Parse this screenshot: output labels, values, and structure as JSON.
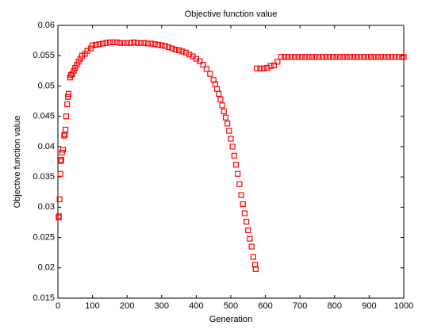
{
  "chart_data": {
    "type": "scatter",
    "title": "Objective function value",
    "xlabel": "Generation",
    "ylabel": "Objective function value",
    "color": "#ff0000",
    "marker": "square",
    "x": [
      2,
      3,
      5,
      7,
      8,
      10,
      12,
      15,
      18,
      20,
      22,
      24,
      27,
      29,
      31,
      35,
      38,
      42,
      46,
      50,
      55,
      60,
      65,
      70,
      78,
      85,
      95,
      100,
      110,
      120,
      130,
      140,
      150,
      160,
      170,
      180,
      190,
      200,
      210,
      220,
      230,
      240,
      250,
      260,
      270,
      280,
      290,
      300,
      310,
      320,
      330,
      340,
      350,
      360,
      370,
      380,
      390,
      400,
      410,
      420,
      430,
      440,
      450,
      455,
      460,
      465,
      470,
      475,
      480,
      485,
      490,
      495,
      500,
      505,
      510,
      515,
      520,
      525,
      530,
      535,
      540,
      545,
      550,
      555,
      560,
      565,
      570,
      572,
      575,
      585,
      595,
      605,
      615,
      625,
      635,
      645,
      655,
      665,
      675,
      685,
      695,
      705,
      715,
      725,
      735,
      745,
      755,
      765,
      775,
      785,
      795,
      805,
      815,
      825,
      835,
      845,
      855,
      865,
      875,
      885,
      895,
      905,
      915,
      925,
      935,
      945,
      955,
      965,
      975,
      985,
      995,
      1000
    ],
    "values": [
      0.0283,
      0.0285,
      0.0313,
      0.0355,
      0.0376,
      0.0378,
      0.039,
      0.0395,
      0.0418,
      0.042,
      0.0428,
      0.045,
      0.047,
      0.0482,
      0.0487,
      0.0514,
      0.0518,
      0.052,
      0.0525,
      0.053,
      0.0535,
      0.054,
      0.0545,
      0.055,
      0.0553,
      0.0558,
      0.0562,
      0.0567,
      0.0568,
      0.0569,
      0.057,
      0.0571,
      0.0572,
      0.0572,
      0.0572,
      0.0571,
      0.0571,
      0.0571,
      0.0571,
      0.0572,
      0.0571,
      0.0571,
      0.0571,
      0.057,
      0.057,
      0.0569,
      0.0568,
      0.0567,
      0.0566,
      0.0564,
      0.0562,
      0.056,
      0.0559,
      0.0557,
      0.0555,
      0.0552,
      0.0549,
      0.0545,
      0.0541,
      0.0535,
      0.0528,
      0.052,
      0.051,
      0.0503,
      0.0495,
      0.0487,
      0.0478,
      0.0468,
      0.0458,
      0.0448,
      0.0438,
      0.0426,
      0.0413,
      0.04,
      0.0385,
      0.037,
      0.0355,
      0.0338,
      0.032,
      0.0305,
      0.029,
      0.0276,
      0.0262,
      0.0248,
      0.0235,
      0.0218,
      0.0205,
      0.0198,
      0.0529,
      0.0529,
      0.0529,
      0.053,
      0.0533,
      0.0534,
      0.054,
      0.0548,
      0.0548,
      0.0548,
      0.0548,
      0.0548,
      0.0548,
      0.0548,
      0.0548,
      0.0548,
      0.0548,
      0.0548,
      0.0548,
      0.0548,
      0.0548,
      0.0548,
      0.0548,
      0.0548,
      0.0548,
      0.0548,
      0.0548,
      0.0548,
      0.0548,
      0.0548,
      0.0548,
      0.0548,
      0.0548,
      0.0548,
      0.0548,
      0.0548,
      0.0548,
      0.0548,
      0.0548,
      0.0548,
      0.0548,
      0.0548,
      0.0548,
      0.0548
    ],
    "xlim": [
      0,
      1000
    ],
    "xticks": [
      0,
      100,
      200,
      300,
      400,
      500,
      600,
      700,
      800,
      900,
      1000
    ],
    "ylim": [
      0.015,
      0.06
    ],
    "yticks": [
      0.015,
      0.02,
      0.025,
      0.03,
      0.035,
      0.04,
      0.045,
      0.05,
      0.055,
      0.06
    ],
    "grid": false
  }
}
